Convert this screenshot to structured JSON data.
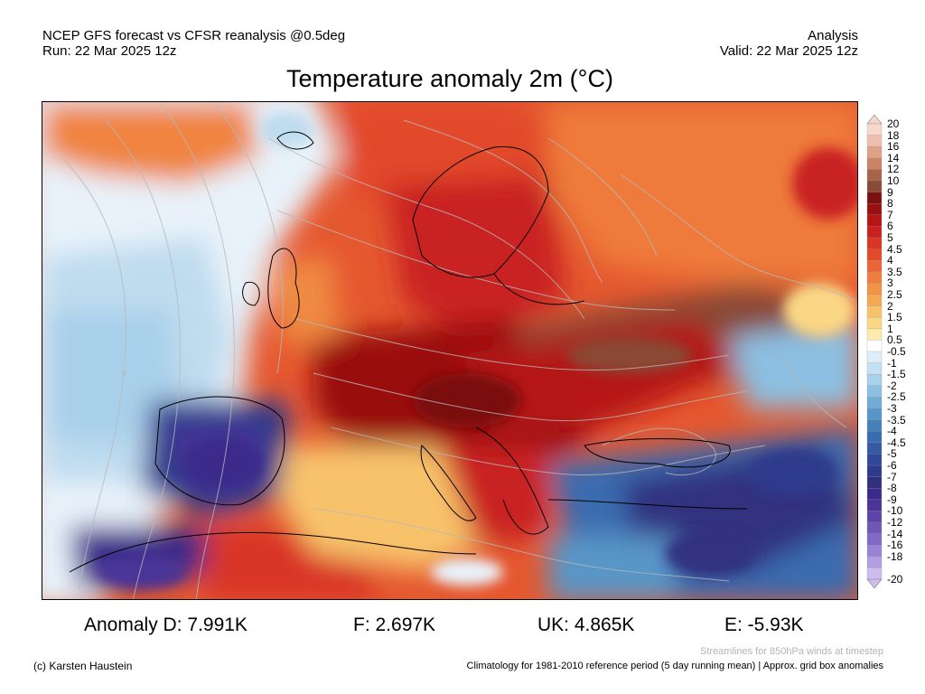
{
  "header": {
    "line1_left": "NCEP GFS forecast vs CFSR reanalysis @0.5deg",
    "line2_left": "Run: 22 Mar 2025 12z",
    "line1_right": "Analysis",
    "line2_right": "Valid: 22 Mar 2025 12z"
  },
  "title": "Temperature anomaly 2m (°C)",
  "colorbar": {
    "labels": [
      "20",
      "18",
      "16",
      "14",
      "12",
      "10",
      "9",
      "8",
      "7",
      "6",
      "5",
      "4.5",
      "4",
      "3.5",
      "3",
      "2.5",
      "2",
      "1.5",
      "1",
      "0.5",
      "-0.5",
      "-1",
      "-1.5",
      "-2",
      "-2.5",
      "-3",
      "-3.5",
      "-4",
      "-4.5",
      "-5",
      "-6",
      "-7",
      "-8",
      "-9",
      "-10",
      "-12",
      "-14",
      "-16",
      "-18",
      "-20"
    ],
    "colors": [
      "#f6d7cc",
      "#efbfae",
      "#e0a287",
      "#c98467",
      "#a96447",
      "#8a4a36",
      "#7a1010",
      "#9a0f0f",
      "#b51515",
      "#c92020",
      "#d93625",
      "#e24a2b",
      "#ea6435",
      "#ef7d3d",
      "#f29247",
      "#f5a955",
      "#f8c26b",
      "#fad785",
      "#fcebad",
      "#ffffff",
      "#ddeef9",
      "#c4e1f3",
      "#a8d1ea",
      "#8cbfe1",
      "#71acd6",
      "#5896c8",
      "#4580bb",
      "#3a6cb0",
      "#355aa3",
      "#2f4898",
      "#2e3a8c",
      "#30307f",
      "#3a2a8a",
      "#4a3498",
      "#5c44a8",
      "#6f57b8",
      "#8369c7",
      "#9a82d6",
      "#b39ee2",
      "#cdbcee"
    ]
  },
  "stats": {
    "d": "Anomaly D: 7.991K",
    "f": "F: 2.697K",
    "uk": "UK: 4.865K",
    "e": "E: -5.93K"
  },
  "footer": {
    "streamlines_note": "Streamlines for 850hPa winds at timestep",
    "copyright": "(c) Karsten Haustein",
    "climatology_note": "Climatology for 1981-2010 reference period (5 day running mean) | Approx. grid box anomalies"
  }
}
